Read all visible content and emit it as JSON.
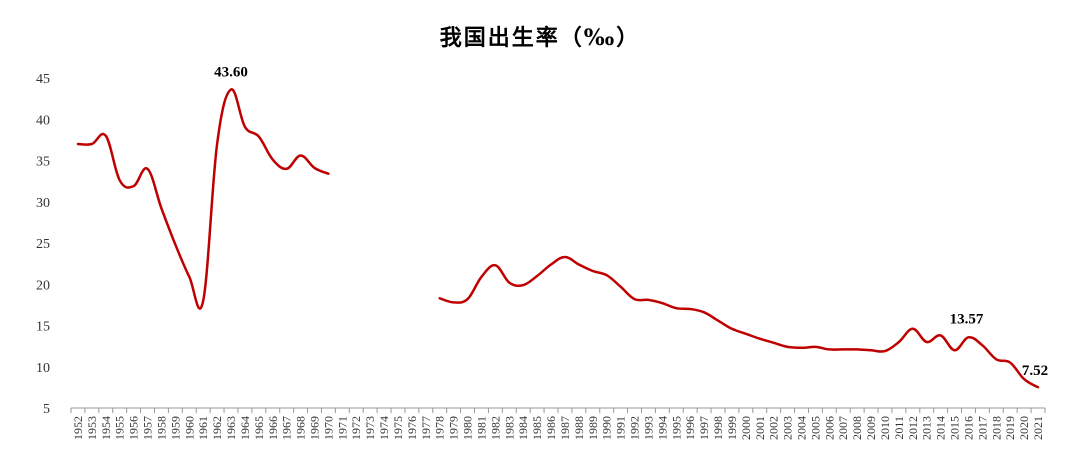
{
  "chart_data": {
    "type": "line",
    "title": "我国出生率（‰）",
    "xlabel": "",
    "ylabel": "",
    "ylim": [
      5,
      45
    ],
    "yticks": [
      5,
      10,
      15,
      20,
      25,
      30,
      35,
      40,
      45
    ],
    "grid": false,
    "line_color": "#C00000",
    "categories": [
      "1952",
      "1953",
      "1954",
      "1955",
      "1956",
      "1957",
      "1958",
      "1959",
      "1960",
      "1961",
      "1962",
      "1963",
      "1964",
      "1965",
      "1966",
      "1967",
      "1968",
      "1969",
      "1970",
      "1971",
      "1972",
      "1973",
      "1974",
      "1975",
      "1976",
      "1977",
      "1978",
      "1979",
      "1980",
      "1981",
      "1982",
      "1983",
      "1984",
      "1985",
      "1986",
      "1987",
      "1988",
      "1989",
      "1990",
      "1991",
      "1992",
      "1993",
      "1994",
      "1995",
      "1996",
      "1997",
      "1998",
      "1999",
      "2000",
      "2001",
      "2002",
      "2003",
      "2004",
      "2005",
      "2006",
      "2007",
      "2008",
      "2009",
      "2010",
      "2011",
      "2012",
      "2013",
      "2014",
      "2015",
      "2016",
      "2017",
      "2018",
      "2019",
      "2020",
      "2021"
    ],
    "series": [
      {
        "values": [
          37.0,
          37.0,
          38.0,
          32.6,
          31.9,
          34.0,
          29.2,
          24.8,
          20.9,
          18.0,
          37.0,
          43.6,
          39.1,
          37.9,
          35.1,
          34.0,
          35.6,
          34.1,
          33.4,
          null,
          null,
          null,
          null,
          null,
          null,
          null,
          18.3,
          17.8,
          18.2,
          20.9,
          22.3,
          20.2,
          19.9,
          21.0,
          22.4,
          23.3,
          22.4,
          21.6,
          21.1,
          19.7,
          18.2,
          18.1,
          17.7,
          17.1,
          17.0,
          16.6,
          15.6,
          14.6,
          14.0,
          13.4,
          12.9,
          12.4,
          12.3,
          12.4,
          12.1,
          12.1,
          12.1,
          12.0,
          11.9,
          13.0,
          14.6,
          13.0,
          13.8,
          12.0,
          13.57,
          12.6,
          10.9,
          10.5,
          8.5,
          7.52
        ]
      }
    ],
    "annotations": [
      {
        "category": "1963",
        "label": "43.60"
      },
      {
        "category": "2016",
        "label": "13.57"
      },
      {
        "category": "2021",
        "label": "7.52"
      }
    ]
  }
}
